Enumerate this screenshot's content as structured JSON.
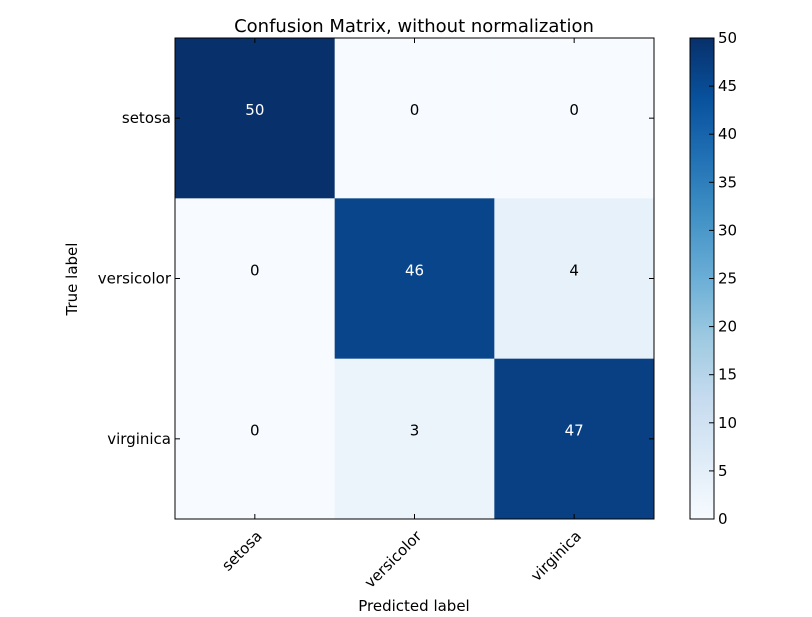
{
  "chart_data": {
    "type": "heatmap",
    "title": "Confusion Matrix, without normalization",
    "xlabel": "Predicted label",
    "ylabel": "True label",
    "x_categories": [
      "setosa",
      "versicolor",
      "virginica"
    ],
    "y_categories": [
      "setosa",
      "versicolor",
      "virginica"
    ],
    "values": [
      [
        50,
        0,
        0
      ],
      [
        0,
        46,
        4
      ],
      [
        0,
        3,
        47
      ]
    ],
    "colorbar": {
      "range": [
        0,
        50
      ],
      "ticks": [
        "0",
        "5",
        "10",
        "15",
        "20",
        "25",
        "30",
        "35",
        "40",
        "45",
        "50"
      ]
    },
    "colormap": "Blues",
    "colors": {
      "low": "#f7fbff",
      "high": "#08306b"
    }
  }
}
